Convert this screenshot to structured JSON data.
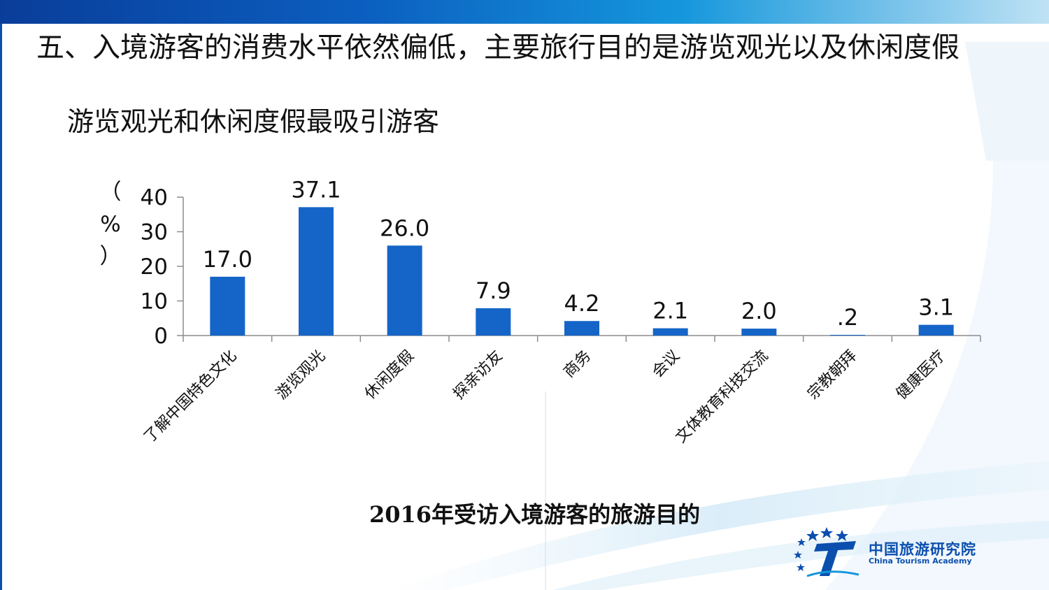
{
  "slide": {
    "main_title": "五、入境游客的消费水平依然偏低，主要旅行目的是游览观光以及休闲度假",
    "sub_title": "游览观光和休闲度假最吸引游客",
    "caption": "2016年受访入境游客的旅游目的"
  },
  "logo": {
    "name_cn": "中国旅游研究院",
    "name_en": "China Tourism Academy"
  },
  "colors": {
    "bar": "#1565c8",
    "band_dark": "#0a3d9a",
    "band_light": "#bfe2f4",
    "logo": "#0b4fae"
  },
  "chart_data": {
    "type": "bar",
    "ylabel": "（%）",
    "ylim": [
      0,
      40
    ],
    "yticks": [
      0,
      10,
      20,
      30,
      40
    ],
    "categories": [
      "了解中国特色文化",
      "游览观光",
      "休闲度假",
      "探亲访友",
      "商务",
      "会议",
      "文体教育科技交流",
      "宗教朝拜",
      "健康医疗"
    ],
    "values": [
      17.0,
      37.1,
      26.0,
      7.9,
      4.2,
      2.1,
      2.0,
      0.2,
      3.1
    ],
    "value_labels": [
      "17.0",
      "37.1",
      "26.0",
      "7.9",
      "4.2",
      "2.1",
      "2.0",
      ".2",
      "3.1"
    ],
    "grid": false,
    "legend": "none"
  }
}
